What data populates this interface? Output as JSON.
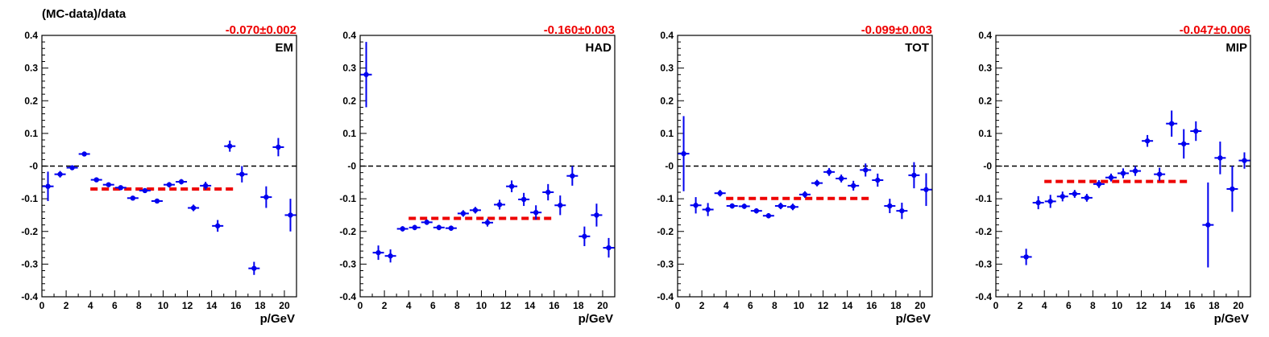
{
  "figure": {
    "ylabel": "(MC-data)/data"
  },
  "style": {
    "point_color": "#0000ee",
    "fit_color": "#ee0000",
    "axis_color": "#000000"
  },
  "chart_data": [
    {
      "type": "scatter",
      "tag": "EM",
      "fit_label": "-0.070±0.002",
      "fit_value": -0.07,
      "fit_range": [
        4,
        16
      ],
      "xlabel": "p/GeV",
      "xlim": [
        0,
        21
      ],
      "ylim": [
        -0.4,
        0.4
      ],
      "xticks": [
        "0",
        "2",
        "4",
        "6",
        "8",
        "10",
        "12",
        "14",
        "16",
        "18",
        "20"
      ],
      "yticks": [
        "-0.4",
        "-0.3",
        "-0.2",
        "-0.1",
        "-0",
        "0.1",
        "0.2",
        "0.3",
        "0.4"
      ],
      "x": [
        0.5,
        1.5,
        2.5,
        3.5,
        4.5,
        5.5,
        6.5,
        7.5,
        8.5,
        9.5,
        10.5,
        11.5,
        12.5,
        13.5,
        14.5,
        15.5,
        16.5,
        17.5,
        18.5,
        19.5,
        20.5
      ],
      "y": [
        -0.062,
        -0.025,
        -0.005,
        0.037,
        -0.042,
        -0.057,
        -0.066,
        -0.098,
        -0.075,
        -0.107,
        -0.057,
        -0.048,
        -0.128,
        -0.06,
        -0.183,
        0.061,
        -0.025,
        -0.313,
        -0.095,
        0.058,
        -0.15
      ],
      "yerr": [
        0.045,
        0.01,
        0.006,
        0.006,
        0.006,
        0.006,
        0.006,
        0.006,
        0.006,
        0.006,
        0.008,
        0.008,
        0.01,
        0.012,
        0.018,
        0.017,
        0.025,
        0.02,
        0.033,
        0.028,
        0.05
      ]
    },
    {
      "type": "scatter",
      "tag": "HAD",
      "fit_label": "-0.160±0.003",
      "fit_value": -0.16,
      "fit_range": [
        4,
        16
      ],
      "xlabel": "p/GeV",
      "xlim": [
        0,
        21
      ],
      "ylim": [
        -0.4,
        0.4
      ],
      "xticks": [
        "0",
        "2",
        "4",
        "6",
        "8",
        "10",
        "12",
        "14",
        "16",
        "18",
        "20"
      ],
      "yticks": [
        "-0.4",
        "-0.3",
        "-0.2",
        "-0.1",
        "-0",
        "0.1",
        "0.2",
        "0.3",
        "0.4"
      ],
      "x": [
        0.5,
        1.5,
        2.5,
        3.5,
        4.5,
        5.5,
        6.5,
        7.5,
        8.5,
        9.5,
        10.5,
        11.5,
        12.5,
        13.5,
        14.5,
        15.5,
        16.5,
        17.5,
        18.5,
        19.5,
        20.5
      ],
      "y": [
        0.28,
        -0.265,
        -0.275,
        -0.192,
        -0.188,
        -0.172,
        -0.188,
        -0.19,
        -0.145,
        -0.135,
        -0.173,
        -0.118,
        -0.062,
        -0.102,
        -0.142,
        -0.08,
        -0.12,
        -0.03,
        -0.215,
        -0.15,
        -0.25
      ],
      "yerr": [
        0.1,
        0.022,
        0.02,
        0.008,
        0.008,
        0.008,
        0.008,
        0.008,
        0.01,
        0.01,
        0.012,
        0.015,
        0.018,
        0.02,
        0.022,
        0.025,
        0.03,
        0.03,
        0.03,
        0.035,
        0.03
      ]
    },
    {
      "type": "scatter",
      "tag": "TOT",
      "fit_label": "-0.099±0.003",
      "fit_value": -0.099,
      "fit_range": [
        4,
        16
      ],
      "xlabel": "p/GeV",
      "xlim": [
        0,
        21
      ],
      "ylim": [
        -0.4,
        0.4
      ],
      "xticks": [
        "0",
        "2",
        "4",
        "6",
        "8",
        "10",
        "12",
        "14",
        "16",
        "18",
        "20"
      ],
      "yticks": [
        "-0.4",
        "-0.3",
        "-0.2",
        "-0.1",
        "-0",
        "0.1",
        "0.2",
        "0.3",
        "0.4"
      ],
      "x": [
        0.5,
        1.5,
        2.5,
        3.5,
        4.5,
        5.5,
        6.5,
        7.5,
        8.5,
        9.5,
        10.5,
        11.5,
        12.5,
        13.5,
        14.5,
        15.5,
        16.5,
        17.5,
        18.5,
        19.5,
        20.5
      ],
      "y": [
        0.038,
        -0.12,
        -0.133,
        -0.083,
        -0.122,
        -0.123,
        -0.137,
        -0.152,
        -0.122,
        -0.125,
        -0.087,
        -0.052,
        -0.018,
        -0.038,
        -0.06,
        -0.012,
        -0.043,
        -0.122,
        -0.137,
        -0.028,
        -0.072
      ],
      "yerr": [
        0.115,
        0.025,
        0.02,
        0.01,
        0.008,
        0.008,
        0.008,
        0.008,
        0.01,
        0.01,
        0.01,
        0.01,
        0.012,
        0.012,
        0.015,
        0.02,
        0.02,
        0.022,
        0.025,
        0.04,
        0.05
      ]
    },
    {
      "type": "scatter",
      "tag": "MIP",
      "fit_label": "-0.047±0.006",
      "fit_value": -0.047,
      "fit_range": [
        4,
        16
      ],
      "xlabel": "p/GeV",
      "xlim": [
        0,
        21
      ],
      "ylim": [
        -0.4,
        0.4
      ],
      "xticks": [
        "0",
        "2",
        "4",
        "6",
        "8",
        "10",
        "12",
        "14",
        "16",
        "18",
        "20"
      ],
      "yticks": [
        "-0.4",
        "-0.3",
        "-0.2",
        "-0.1",
        "-0",
        "0.1",
        "0.2",
        "0.3",
        "0.4"
      ],
      "x": [
        2.5,
        3.5,
        4.5,
        5.5,
        6.5,
        7.5,
        8.5,
        9.5,
        10.5,
        11.5,
        12.5,
        13.5,
        14.5,
        15.5,
        16.5,
        17.5,
        18.5,
        19.5,
        20.5
      ],
      "y": [
        -0.278,
        -0.112,
        -0.108,
        -0.093,
        -0.085,
        -0.097,
        -0.055,
        -0.035,
        -0.022,
        -0.015,
        0.077,
        -0.025,
        0.13,
        0.068,
        0.107,
        -0.18,
        0.025,
        -0.07,
        0.017
      ],
      "yerr": [
        0.025,
        0.02,
        0.02,
        0.015,
        0.012,
        0.012,
        0.012,
        0.012,
        0.015,
        0.015,
        0.018,
        0.02,
        0.04,
        0.045,
        0.03,
        0.13,
        0.05,
        0.07,
        0.025
      ]
    }
  ]
}
